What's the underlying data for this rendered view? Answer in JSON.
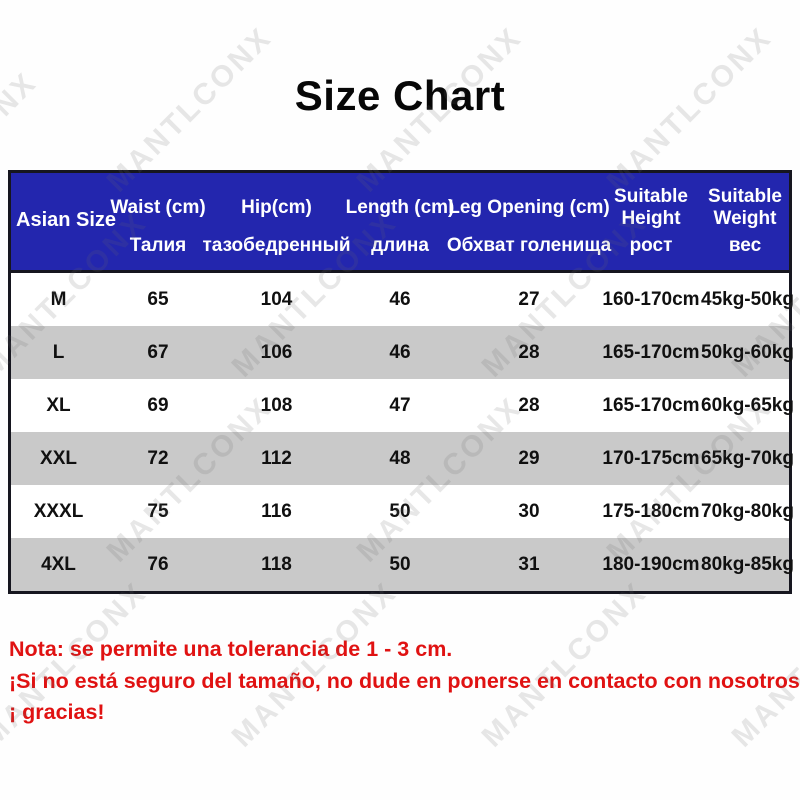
{
  "title": "Size Chart",
  "watermark": {
    "text": "MANTLCONX"
  },
  "table": {
    "columns": [
      {
        "key": "size",
        "en": "Asian Size",
        "ru": ""
      },
      {
        "key": "waist",
        "en": "Waist (cm)",
        "ru": "Талия"
      },
      {
        "key": "hip",
        "en": "Hip(cm)",
        "ru": "тазобедренный"
      },
      {
        "key": "length",
        "en": "Length (cm)",
        "ru": "длина"
      },
      {
        "key": "leg_opening",
        "en": "Leg Opening (cm)",
        "ru": "Обхват голенища"
      },
      {
        "key": "height",
        "en": "Suitable Height",
        "ru": "рост"
      },
      {
        "key": "weight",
        "en": "Suitable Weight",
        "ru": "вес"
      }
    ],
    "rows": [
      {
        "size": "M",
        "waist": "65",
        "hip": "104",
        "length": "46",
        "leg_opening": "27",
        "height": "160-170cm",
        "weight": "45kg-50kg"
      },
      {
        "size": "L",
        "waist": "67",
        "hip": "106",
        "length": "46",
        "leg_opening": "28",
        "height": "165-170cm",
        "weight": "50kg-60kg"
      },
      {
        "size": "XL",
        "waist": "69",
        "hip": "108",
        "length": "47",
        "leg_opening": "28",
        "height": "165-170cm",
        "weight": "60kg-65kg"
      },
      {
        "size": "XXL",
        "waist": "72",
        "hip": "112",
        "length": "48",
        "leg_opening": "29",
        "height": "170-175cm",
        "weight": "65kg-70kg"
      },
      {
        "size": "XXXL",
        "waist": "75",
        "hip": "116",
        "length": "50",
        "leg_opening": "30",
        "height": "175-180cm",
        "weight": "70kg-80kg"
      },
      {
        "size": "4XL",
        "waist": "76",
        "hip": "118",
        "length": "50",
        "leg_opening": "31",
        "height": "180-190cm",
        "weight": "80kg-85kg"
      }
    ]
  },
  "notes": {
    "lines": [
      "Nota: se permite una tolerancia de 1 - 3 cm.",
      "¡Si no está seguro del tamaño, no dude en ponerse en contacto con nosotros,",
      "¡ gracias!"
    ]
  },
  "colors": {
    "header_bg": "#2326AE",
    "header_text": "#FFFFFF",
    "row_alt_bg": "#C9C9C9",
    "table_border": "#16161F",
    "note_red": "#E01212",
    "title_text": "#070707"
  }
}
